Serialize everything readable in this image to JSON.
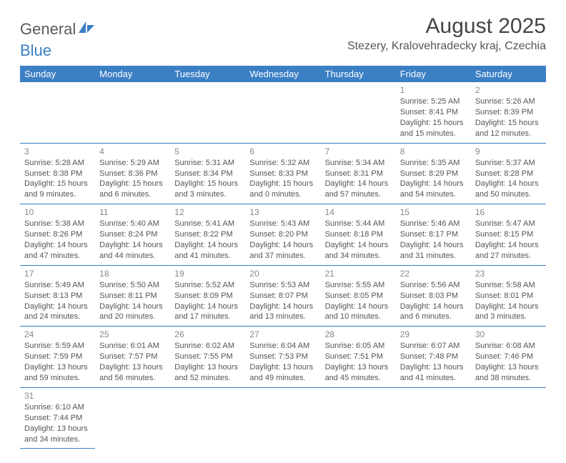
{
  "brand": {
    "part1": "General",
    "part2": "Blue"
  },
  "title": "August 2025",
  "location": "Stezery, Kralovehradecky kraj, Czechia",
  "colors": {
    "header_bg": "#3b7fc4",
    "header_text": "#ffffff",
    "rule": "#3b7fc4",
    "body_text": "#555555",
    "daynum": "#888888",
    "background": "#ffffff"
  },
  "day_headers": [
    "Sunday",
    "Monday",
    "Tuesday",
    "Wednesday",
    "Thursday",
    "Friday",
    "Saturday"
  ],
  "weeks": [
    [
      null,
      null,
      null,
      null,
      null,
      {
        "n": "1",
        "sunrise": "5:25 AM",
        "sunset": "8:41 PM",
        "daylight": "15 hours and 15 minutes."
      },
      {
        "n": "2",
        "sunrise": "5:26 AM",
        "sunset": "8:39 PM",
        "daylight": "15 hours and 12 minutes."
      }
    ],
    [
      {
        "n": "3",
        "sunrise": "5:28 AM",
        "sunset": "8:38 PM",
        "daylight": "15 hours and 9 minutes."
      },
      {
        "n": "4",
        "sunrise": "5:29 AM",
        "sunset": "8:36 PM",
        "daylight": "15 hours and 6 minutes."
      },
      {
        "n": "5",
        "sunrise": "5:31 AM",
        "sunset": "8:34 PM",
        "daylight": "15 hours and 3 minutes."
      },
      {
        "n": "6",
        "sunrise": "5:32 AM",
        "sunset": "8:33 PM",
        "daylight": "15 hours and 0 minutes."
      },
      {
        "n": "7",
        "sunrise": "5:34 AM",
        "sunset": "8:31 PM",
        "daylight": "14 hours and 57 minutes."
      },
      {
        "n": "8",
        "sunrise": "5:35 AM",
        "sunset": "8:29 PM",
        "daylight": "14 hours and 54 minutes."
      },
      {
        "n": "9",
        "sunrise": "5:37 AM",
        "sunset": "8:28 PM",
        "daylight": "14 hours and 50 minutes."
      }
    ],
    [
      {
        "n": "10",
        "sunrise": "5:38 AM",
        "sunset": "8:26 PM",
        "daylight": "14 hours and 47 minutes."
      },
      {
        "n": "11",
        "sunrise": "5:40 AM",
        "sunset": "8:24 PM",
        "daylight": "14 hours and 44 minutes."
      },
      {
        "n": "12",
        "sunrise": "5:41 AM",
        "sunset": "8:22 PM",
        "daylight": "14 hours and 41 minutes."
      },
      {
        "n": "13",
        "sunrise": "5:43 AM",
        "sunset": "8:20 PM",
        "daylight": "14 hours and 37 minutes."
      },
      {
        "n": "14",
        "sunrise": "5:44 AM",
        "sunset": "8:18 PM",
        "daylight": "14 hours and 34 minutes."
      },
      {
        "n": "15",
        "sunrise": "5:46 AM",
        "sunset": "8:17 PM",
        "daylight": "14 hours and 31 minutes."
      },
      {
        "n": "16",
        "sunrise": "5:47 AM",
        "sunset": "8:15 PM",
        "daylight": "14 hours and 27 minutes."
      }
    ],
    [
      {
        "n": "17",
        "sunrise": "5:49 AM",
        "sunset": "8:13 PM",
        "daylight": "14 hours and 24 minutes."
      },
      {
        "n": "18",
        "sunrise": "5:50 AM",
        "sunset": "8:11 PM",
        "daylight": "14 hours and 20 minutes."
      },
      {
        "n": "19",
        "sunrise": "5:52 AM",
        "sunset": "8:09 PM",
        "daylight": "14 hours and 17 minutes."
      },
      {
        "n": "20",
        "sunrise": "5:53 AM",
        "sunset": "8:07 PM",
        "daylight": "14 hours and 13 minutes."
      },
      {
        "n": "21",
        "sunrise": "5:55 AM",
        "sunset": "8:05 PM",
        "daylight": "14 hours and 10 minutes."
      },
      {
        "n": "22",
        "sunrise": "5:56 AM",
        "sunset": "8:03 PM",
        "daylight": "14 hours and 6 minutes."
      },
      {
        "n": "23",
        "sunrise": "5:58 AM",
        "sunset": "8:01 PM",
        "daylight": "14 hours and 3 minutes."
      }
    ],
    [
      {
        "n": "24",
        "sunrise": "5:59 AM",
        "sunset": "7:59 PM",
        "daylight": "13 hours and 59 minutes."
      },
      {
        "n": "25",
        "sunrise": "6:01 AM",
        "sunset": "7:57 PM",
        "daylight": "13 hours and 56 minutes."
      },
      {
        "n": "26",
        "sunrise": "6:02 AM",
        "sunset": "7:55 PM",
        "daylight": "13 hours and 52 minutes."
      },
      {
        "n": "27",
        "sunrise": "6:04 AM",
        "sunset": "7:53 PM",
        "daylight": "13 hours and 49 minutes."
      },
      {
        "n": "28",
        "sunrise": "6:05 AM",
        "sunset": "7:51 PM",
        "daylight": "13 hours and 45 minutes."
      },
      {
        "n": "29",
        "sunrise": "6:07 AM",
        "sunset": "7:48 PM",
        "daylight": "13 hours and 41 minutes."
      },
      {
        "n": "30",
        "sunrise": "6:08 AM",
        "sunset": "7:46 PM",
        "daylight": "13 hours and 38 minutes."
      }
    ],
    [
      {
        "n": "31",
        "sunrise": "6:10 AM",
        "sunset": "7:44 PM",
        "daylight": "13 hours and 34 minutes."
      },
      null,
      null,
      null,
      null,
      null,
      null
    ]
  ],
  "labels": {
    "sunrise": "Sunrise: ",
    "sunset": "Sunset: ",
    "daylight": "Daylight: "
  }
}
